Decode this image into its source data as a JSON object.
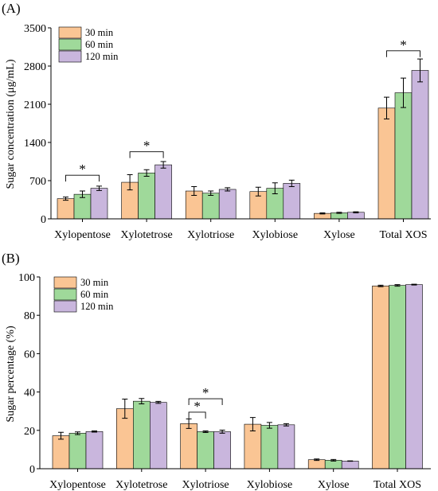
{
  "chart_data": [
    {
      "type": "bar",
      "panel_label": "(A)",
      "ylabel": "Sugar concentration (μg/mL)",
      "xlabel": "",
      "ylim": [
        0,
        3500
      ],
      "yticks": [
        0,
        700,
        1400,
        2100,
        2800,
        3500
      ],
      "categories": [
        "Xylopentose",
        "Xylotetrose",
        "Xylotriose",
        "Xylobiose",
        "Xylose",
        "Total XOS"
      ],
      "series": [
        {
          "name": "30 min",
          "color": "#fac594",
          "values": [
            370,
            670,
            510,
            500,
            100,
            2030
          ],
          "errors": [
            30,
            140,
            80,
            80,
            10,
            200
          ]
        },
        {
          "name": "60 min",
          "color": "#9fd99a",
          "values": [
            450,
            840,
            470,
            560,
            110,
            2310
          ],
          "errors": [
            60,
            60,
            40,
            100,
            10,
            270
          ]
        },
        {
          "name": "120 min",
          "color": "#c9b6dd",
          "values": [
            560,
            990,
            540,
            650,
            120,
            2720
          ],
          "errors": [
            40,
            60,
            30,
            60,
            10,
            210
          ]
        }
      ],
      "legend": "top-left",
      "significance": [
        {
          "label": "*",
          "from": {
            "category": 0,
            "series": 0
          },
          "to": {
            "category": 0,
            "series": 2
          },
          "y": 800
        },
        {
          "label": "*",
          "from": {
            "category": 1,
            "series": 0
          },
          "to": {
            "category": 1,
            "series": 2
          },
          "y": 1230
        },
        {
          "label": "*",
          "from": {
            "category": 5,
            "series": 0
          },
          "to": {
            "category": 5,
            "series": 2
          },
          "y": 3080
        }
      ]
    },
    {
      "type": "bar",
      "panel_label": "(B)",
      "ylabel": "Sugar percentage (%)",
      "xlabel": "",
      "ylim": [
        0,
        100
      ],
      "yticks": [
        0,
        20,
        40,
        60,
        80,
        100
      ],
      "categories": [
        "Xylopentose",
        "Xylotetrose",
        "Xylotriose",
        "Xylobiose",
        "Xylose",
        "Total XOS"
      ],
      "series": [
        {
          "name": "30 min",
          "color": "#fac594",
          "values": [
            17.2,
            31.3,
            23.5,
            23.2,
            4.7,
            95.3
          ],
          "errors": [
            1.8,
            5.0,
            2.5,
            3.5,
            0.4,
            0.4
          ]
        },
        {
          "name": "60 min",
          "color": "#9fd99a",
          "values": [
            18.5,
            35.2,
            19.3,
            22.6,
            4.4,
            95.6
          ],
          "errors": [
            0.7,
            1.4,
            0.4,
            1.5,
            0.4,
            0.4
          ]
        },
        {
          "name": "120 min",
          "color": "#c9b6dd",
          "values": [
            19.4,
            34.6,
            19.3,
            22.9,
            4.0,
            96.0
          ],
          "errors": [
            0.3,
            0.5,
            0.8,
            0.6,
            0.1,
            0.2
          ]
        }
      ],
      "legend": "top-left",
      "significance": [
        {
          "label": "*",
          "from": {
            "category": 2,
            "series": 0
          },
          "to": {
            "category": 2,
            "series": 2
          },
          "y": 36.5
        },
        {
          "label": "*",
          "from": {
            "category": 2,
            "series": 0
          },
          "to": {
            "category": 2,
            "series": 1
          },
          "y": 29.5
        }
      ]
    }
  ]
}
